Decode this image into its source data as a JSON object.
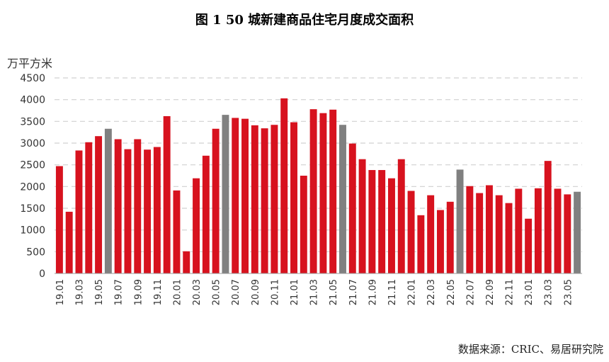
{
  "header": {
    "title": "图 1    50 城新建商品住宅月度成交面积",
    "unit": "万平方米",
    "source": "数据来源：CRIC、易居研究院"
  },
  "colors": {
    "bar_default": "#d7121e",
    "bar_highlight": "#808080",
    "grid": "#d0d0d0",
    "axis": "#999999"
  },
  "chart_data": {
    "type": "bar",
    "title": "图 1    50 城新建商品住宅月度成交面积",
    "ylabel": "万平方米",
    "xlabel": "",
    "ylim": [
      0,
      4500
    ],
    "yticks": [
      0,
      500,
      1000,
      1500,
      2000,
      2500,
      3000,
      3500,
      4000,
      4500
    ],
    "grid": true,
    "categories": [
      "19.01",
      "19.02",
      "19.03",
      "19.04",
      "19.05",
      "19.06",
      "19.07",
      "19.08",
      "19.09",
      "19.10",
      "19.11",
      "19.12",
      "20.01",
      "20.02",
      "20.03",
      "20.04",
      "20.05",
      "20.06",
      "20.07",
      "20.08",
      "20.09",
      "20.10",
      "20.11",
      "20.12",
      "21.01",
      "21.02",
      "21.03",
      "21.04",
      "21.05",
      "21.06",
      "21.07",
      "21.08",
      "21.09",
      "21.10",
      "21.11",
      "21.12",
      "22.01",
      "22.02",
      "22.03",
      "22.04",
      "22.05",
      "22.06",
      "22.07",
      "22.08",
      "22.09",
      "22.10",
      "22.11",
      "22.12",
      "23.01",
      "23.02",
      "23.03",
      "23.04",
      "23.05",
      "23.06"
    ],
    "x_tick_labels": [
      "19.01",
      "19.03",
      "19.05",
      "19.07",
      "19.09",
      "19.11",
      "20.01",
      "20.03",
      "20.05",
      "20.07",
      "20.09",
      "20.11",
      "21.01",
      "21.03",
      "21.05",
      "21.07",
      "21.09",
      "21.11",
      "22.01",
      "22.03",
      "22.05",
      "22.07",
      "22.09",
      "22.11",
      "23.01",
      "23.03",
      "23.05"
    ],
    "values": [
      2470,
      1420,
      2830,
      3020,
      3160,
      3330,
      3090,
      2860,
      3090,
      2850,
      2910,
      3620,
      1910,
      510,
      2190,
      2710,
      3330,
      3650,
      3580,
      3560,
      3410,
      3340,
      3420,
      4030,
      3480,
      2250,
      3780,
      3690,
      3770,
      3420,
      2990,
      2630,
      2380,
      2380,
      2190,
      2630,
      1900,
      1340,
      1800,
      1460,
      1650,
      2390,
      2010,
      1850,
      2030,
      1800,
      1620,
      1950,
      1260,
      1960,
      2590,
      1950,
      1820,
      1880
    ],
    "highlight": [
      false,
      false,
      false,
      false,
      false,
      true,
      false,
      false,
      false,
      false,
      false,
      false,
      false,
      false,
      false,
      false,
      false,
      true,
      false,
      false,
      false,
      false,
      false,
      false,
      false,
      false,
      false,
      false,
      false,
      true,
      false,
      false,
      false,
      false,
      false,
      false,
      false,
      false,
      false,
      false,
      false,
      true,
      false,
      false,
      false,
      false,
      false,
      false,
      false,
      false,
      false,
      false,
      false,
      true
    ]
  }
}
